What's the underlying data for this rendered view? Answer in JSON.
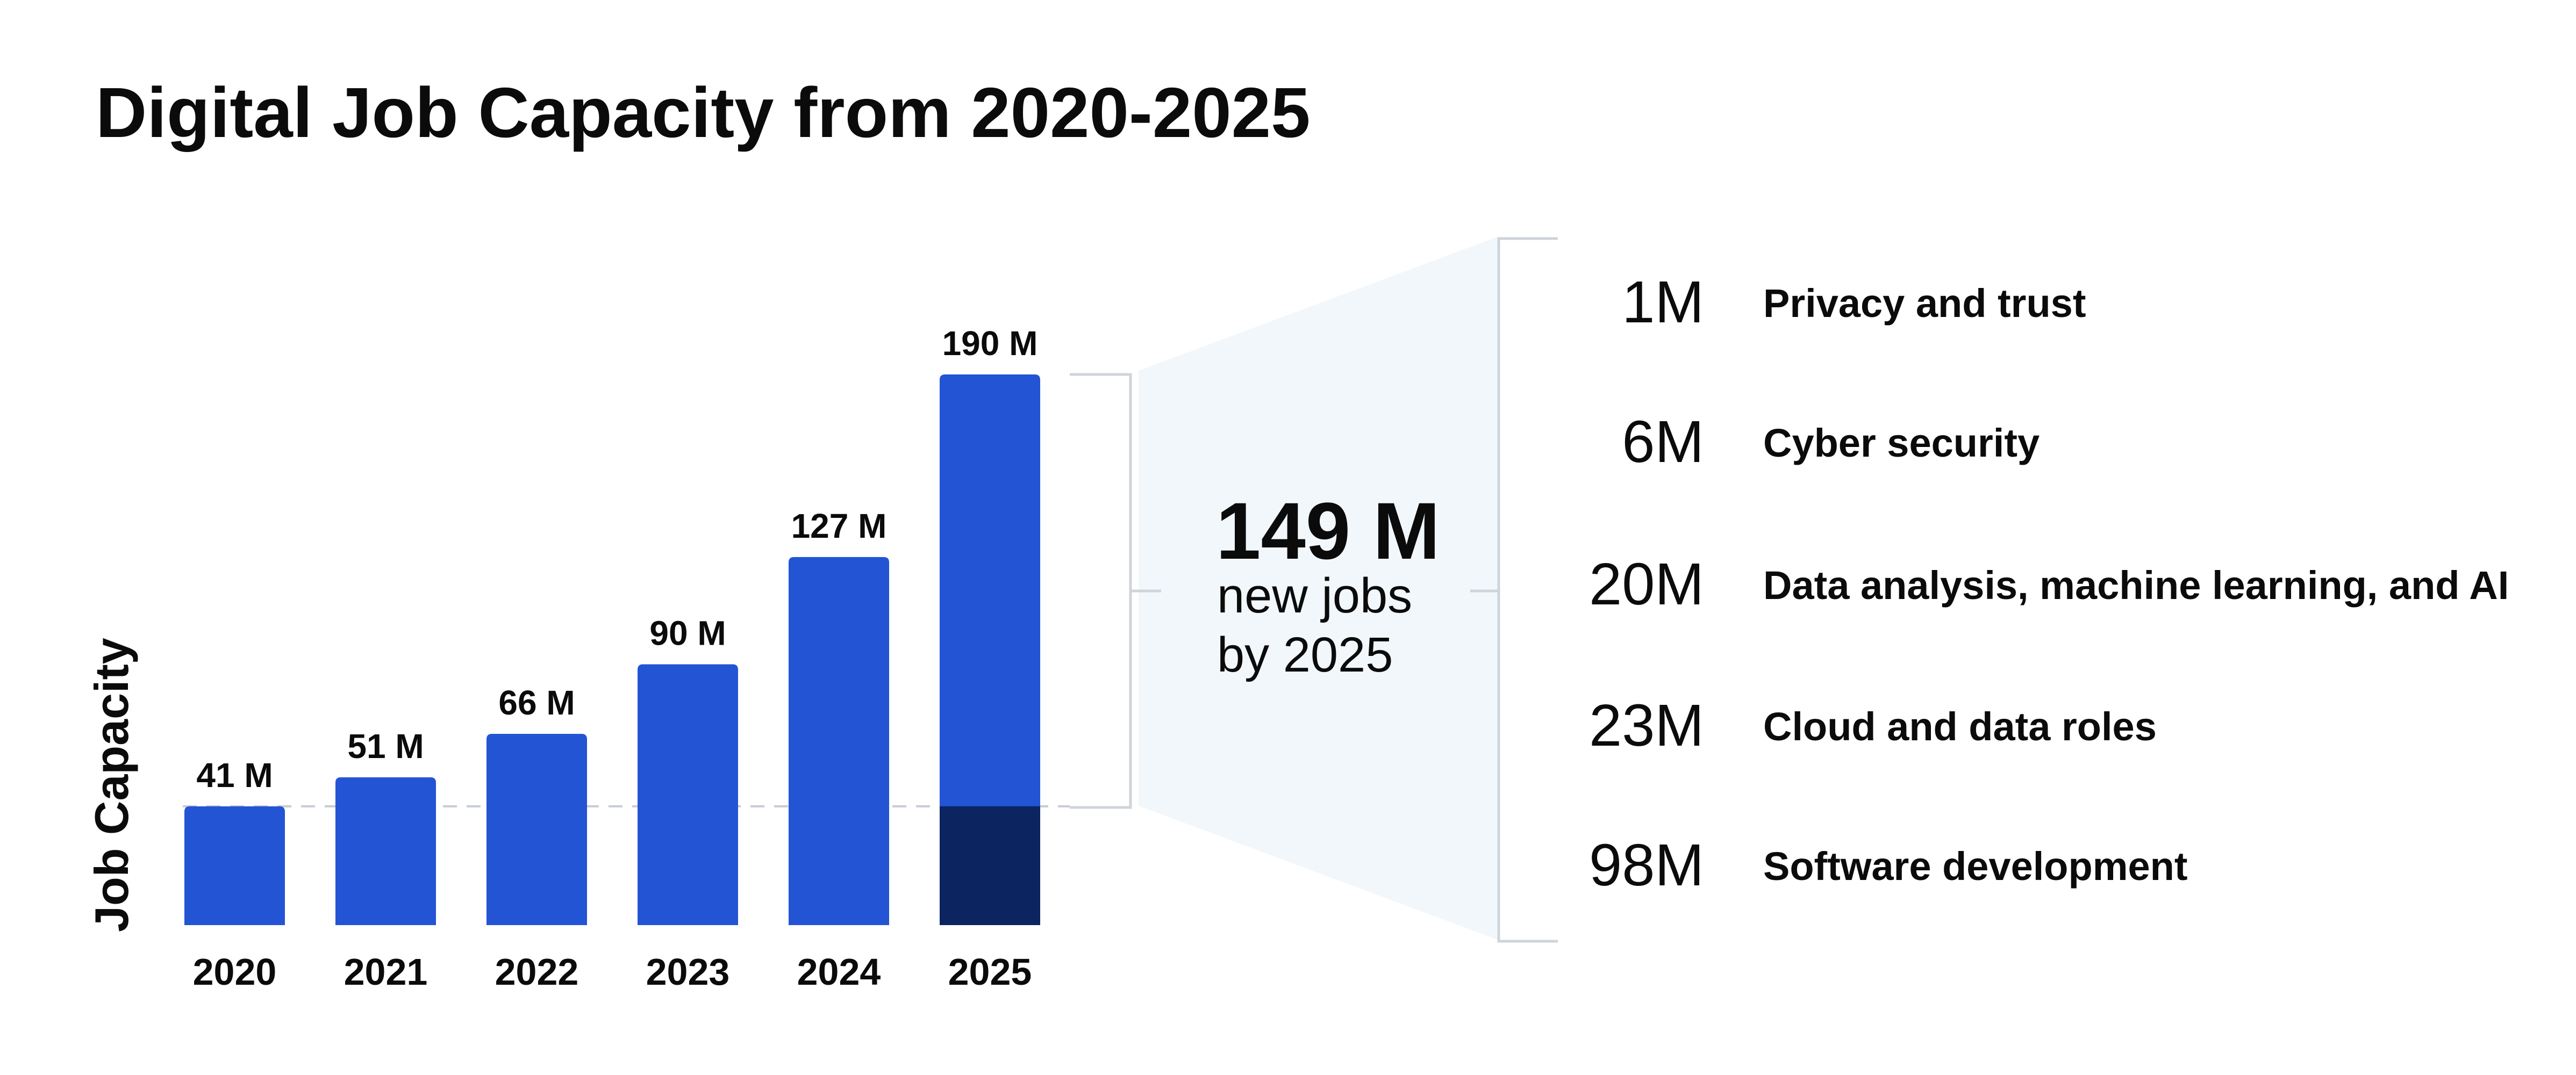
{
  "colors": {
    "bar": "#2354d4",
    "bar_base_segment": "#0c2460",
    "callout_fill": "#f1f7fb",
    "bracket": "#cfd4da",
    "dashed_line": "#c5ccd6",
    "text": "#0b0b0b"
  },
  "chart_data": {
    "type": "bar",
    "title": "Digital Job Capacity from 2020-2025",
    "ylabel": "Job Capacity",
    "xlabel": "",
    "categories": [
      "2020",
      "2021",
      "2022",
      "2023",
      "2024",
      "2025"
    ],
    "values": [
      41,
      51,
      66,
      90,
      127,
      190
    ],
    "value_labels": [
      "41 M",
      "51 M",
      "66 M",
      "90 M",
      "127 M",
      "190 M"
    ],
    "baseline_value": 41,
    "grid": false,
    "callout": {
      "value": "149 M",
      "line1": "new jobs",
      "line2": "by 2025"
    },
    "breakdown": [
      {
        "value": "1M",
        "label": "Privacy and trust"
      },
      {
        "value": "6M",
        "label": "Cyber security"
      },
      {
        "value": "20M",
        "label": "Data analysis, machine learning, and AI"
      },
      {
        "value": "23M",
        "label": "Cloud and data roles"
      },
      {
        "value": "98M",
        "label": "Software development"
      }
    ]
  }
}
